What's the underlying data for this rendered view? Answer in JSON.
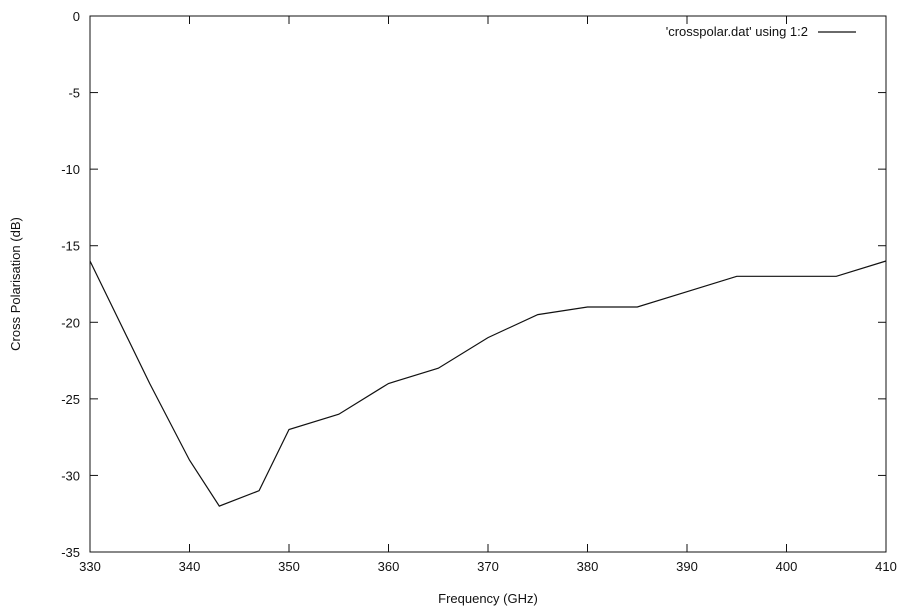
{
  "chart_data": {
    "type": "line",
    "title": "",
    "xlabel": "Frequency (GHz)",
    "ylabel": "Cross Polarisation (dB)",
    "xlim": [
      330,
      410
    ],
    "ylim": [
      -35,
      0
    ],
    "x_ticks": [
      330,
      340,
      350,
      360,
      370,
      380,
      390,
      400,
      410
    ],
    "y_ticks": [
      0,
      -5,
      -10,
      -15,
      -20,
      -25,
      -30,
      -35
    ],
    "grid": false,
    "legend_position": "top-right",
    "series": [
      {
        "name": "'crosspolar.dat' using 1:2",
        "color": "#111111",
        "x": [
          330,
          336,
          340,
          343,
          347,
          350,
          355,
          360,
          365,
          370,
          375,
          380,
          385,
          390,
          395,
          400,
          405,
          410
        ],
        "y": [
          -16,
          -24,
          -29,
          -32,
          -31,
          -27,
          -26,
          -24,
          -23,
          -21,
          -19.5,
          -19,
          -19,
          -18,
          -17,
          -17,
          -17,
          -16
        ]
      }
    ]
  }
}
